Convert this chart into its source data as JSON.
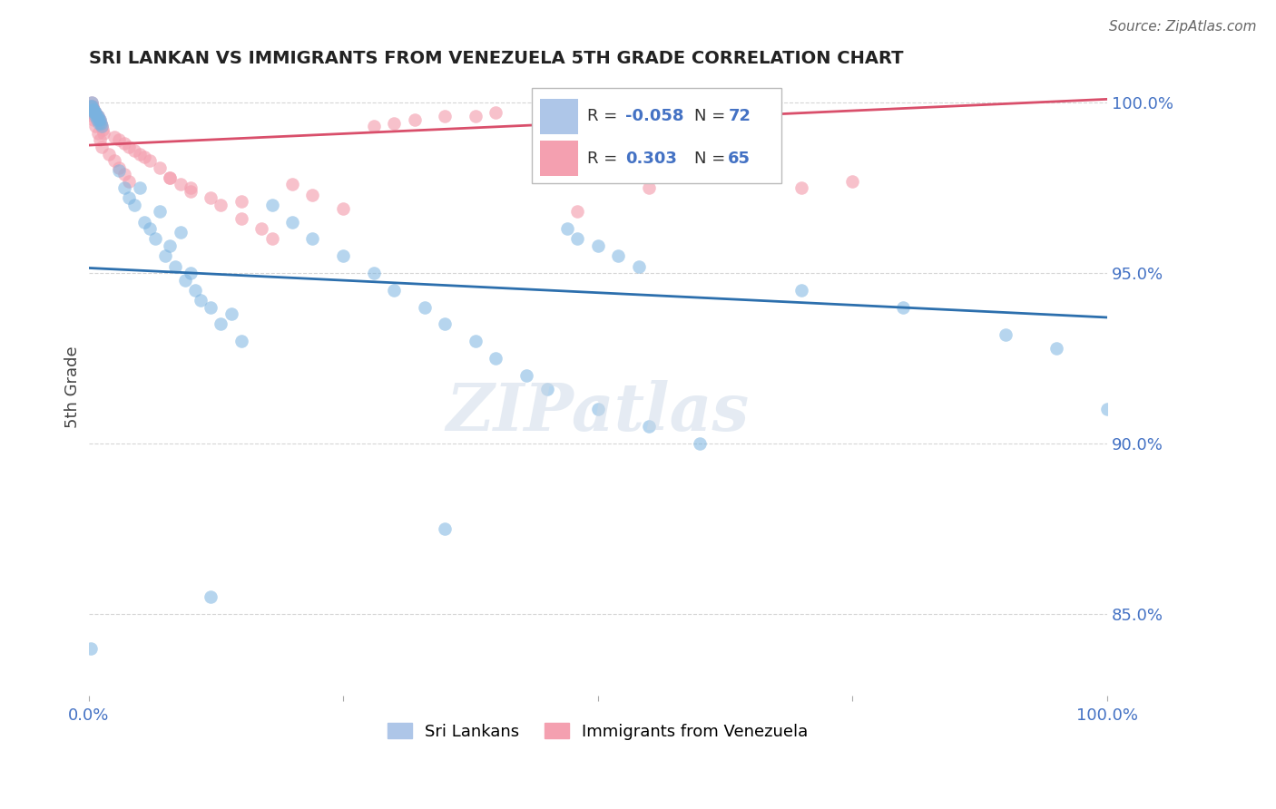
{
  "title": "SRI LANKAN VS IMMIGRANTS FROM VENEZUELA 5TH GRADE CORRELATION CHART",
  "source": "Source: ZipAtlas.com",
  "ylabel": "5th Grade",
  "watermark": "ZIPatlas",
  "blue_color": "#7ab3e0",
  "pink_color": "#f4a0b0",
  "blue_line_color": "#2c6fad",
  "pink_line_color": "#d94f6b",
  "axis_color": "#4472c4",
  "grid_color": "#cccccc",
  "legend_r1_R": "-0.058",
  "legend_r1_N": "72",
  "legend_r2_R": "0.303",
  "legend_r2_N": "65",
  "blue_line_y0": 0.9515,
  "blue_line_y1": 0.937,
  "pink_line_y0": 0.9875,
  "pink_line_y1": 1.001,
  "ylim_low": 0.826,
  "ylim_high": 1.007,
  "xlim_low": 0.0,
  "xlim_high": 1.0,
  "yticks": [
    0.85,
    0.9,
    0.95,
    1.0
  ],
  "ytick_labels": [
    "85.0%",
    "90.0%",
    "95.0%",
    "100.0%"
  ]
}
